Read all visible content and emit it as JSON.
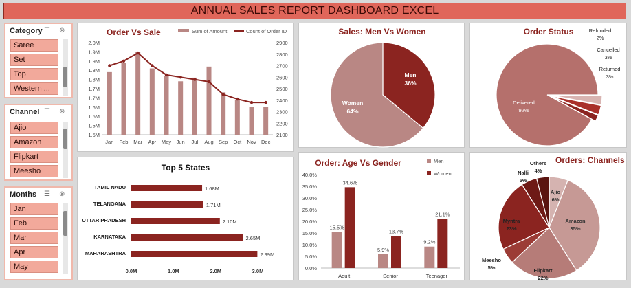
{
  "title": "ANNUAL SALES REPORT DASHBOARD EXCEL",
  "colors": {
    "dark": "#8b2420",
    "light": "#b98784",
    "pink": "#f2a99b"
  },
  "slicers": {
    "category": {
      "label": "Category",
      "items": [
        "Saree",
        "Set",
        "Top",
        "Western ..."
      ]
    },
    "channel": {
      "label": "Channel",
      "items": [
        "Ajio",
        "Amazon",
        "Flipkart",
        "Meesho"
      ]
    },
    "months": {
      "label": "Months",
      "items": [
        "Jan",
        "Feb",
        "Mar",
        "Apr",
        "May"
      ]
    }
  },
  "chart_data": [
    {
      "id": "order_vs_sale",
      "type": "bar",
      "title": "Order Vs Sale",
      "categories": [
        "Jan",
        "Feb",
        "Mar",
        "Apr",
        "May",
        "Jun",
        "Jul",
        "Aug",
        "Sep",
        "Oct",
        "Nov",
        "Dec"
      ],
      "series": [
        {
          "name": "Sum of Amount",
          "kind": "bar",
          "axis": "left",
          "values": [
            1.84,
            1.89,
            1.95,
            1.86,
            1.82,
            1.79,
            1.81,
            1.87,
            1.73,
            1.69,
            1.65,
            1.65
          ]
        },
        {
          "name": "Count of Order ID",
          "kind": "line",
          "axis": "right",
          "values": [
            2700,
            2740,
            2810,
            2700,
            2620,
            2600,
            2580,
            2560,
            2450,
            2410,
            2380,
            2380
          ]
        }
      ],
      "left_axis": {
        "ticks": [
          "2.0M",
          "1.9M",
          "1.9M",
          "1.8M",
          "1.8M",
          "1.7M",
          "1.7M",
          "1.6M",
          "1.6M",
          "1.5M",
          "1.5M"
        ],
        "ylim": [
          1.5,
          2.0
        ]
      },
      "right_axis": {
        "ticks": [
          "2900",
          "2800",
          "2700",
          "2600",
          "2500",
          "2400",
          "2300",
          "2200",
          "2100"
        ],
        "ylim": [
          2100,
          2900
        ]
      }
    },
    {
      "id": "sales_men_women",
      "type": "pie",
      "title": "Sales: Men Vs Women",
      "slices": [
        {
          "label": "Men",
          "value": 36,
          "pct": "36%",
          "color": "#8b2420"
        },
        {
          "label": "Women",
          "value": 64,
          "pct": "64%",
          "color": "#b98784"
        }
      ]
    },
    {
      "id": "order_status",
      "type": "pie",
      "title": "Order Status",
      "slices": [
        {
          "label": "Delivered",
          "value": 92,
          "pct": "92%",
          "color": "#b5706c"
        },
        {
          "label": "Refunded",
          "value": 2,
          "pct": "2%",
          "color": "#8b2420"
        },
        {
          "label": "Cancelled",
          "value": 3,
          "pct": "3%",
          "color": "#a9302a"
        },
        {
          "label": "Returned",
          "value": 3,
          "pct": "3%",
          "color": "#d8b4b1"
        }
      ]
    },
    {
      "id": "top5_states",
      "type": "bar",
      "title": "Top 5 States",
      "orientation": "horizontal",
      "categories": [
        "TAMIL NADU",
        "TELANGANA",
        "UTTAR PRADESH",
        "KARNATAKA",
        "MAHARASHTRA"
      ],
      "values": [
        1.68,
        1.71,
        2.1,
        2.65,
        2.99
      ],
      "value_labels": [
        "1.68M",
        "1.71M",
        "2.10M",
        "2.65M",
        "2.99M"
      ],
      "x_ticks": [
        "0.0M",
        "1.0M",
        "2.0M",
        "3.0M"
      ],
      "xlim": [
        0,
        3.0
      ]
    },
    {
      "id": "age_vs_gender",
      "type": "bar",
      "title": "Order: Age Vs Gender",
      "categories": [
        "Adult",
        "Senior",
        "Teenager"
      ],
      "series": [
        {
          "name": "Men",
          "values": [
            15.5,
            5.9,
            9.2
          ],
          "labels": [
            "15.5%",
            "5.9%",
            "9.2%"
          ],
          "color": "#b98784"
        },
        {
          "name": "Women",
          "values": [
            34.6,
            13.7,
            21.1
          ],
          "labels": [
            "34.6%",
            "13.7%",
            "21.1%"
          ],
          "color": "#8b2420"
        }
      ],
      "y_ticks": [
        "40.0%",
        "35.0%",
        "30.0%",
        "25.0%",
        "20.0%",
        "15.0%",
        "10.0%",
        "5.0%",
        "0.0%"
      ],
      "ylim": [
        0,
        40
      ]
    },
    {
      "id": "orders_channels",
      "type": "pie",
      "title": "Orders: Channels",
      "slices": [
        {
          "label": "Ajio",
          "value": 6,
          "pct": "6%",
          "color": "#d5b3b0"
        },
        {
          "label": "Amazon",
          "value": 35,
          "pct": "35%",
          "color": "#c69995"
        },
        {
          "label": "Flipkart",
          "value": 22,
          "pct": "22%",
          "color": "#b67c78"
        },
        {
          "label": "Meesho",
          "value": 5,
          "pct": "5%",
          "color": "#9c3c36"
        },
        {
          "label": "Myntra",
          "value": 23,
          "pct": "23%",
          "color": "#8b2420"
        },
        {
          "label": "Nalli",
          "value": 5,
          "pct": "5%",
          "color": "#6e1a16"
        },
        {
          "label": "Others",
          "value": 4,
          "pct": "4%",
          "color": "#5a1410"
        }
      ]
    }
  ]
}
